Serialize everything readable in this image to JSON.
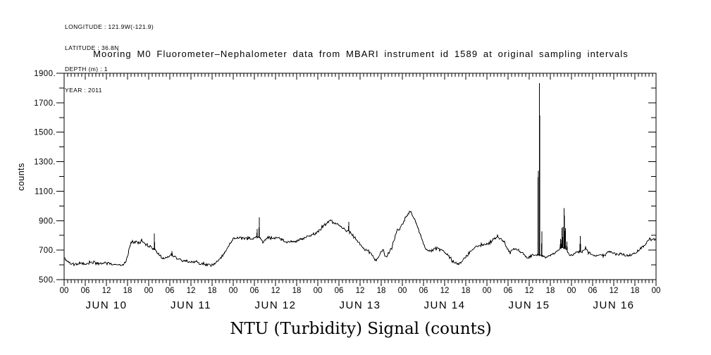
{
  "header": {
    "line1": "LONGITUDE : 121.9W(-121.9)",
    "line2": "LATITUDE : 36.8N",
    "line3": "DEPTH (m) : 1",
    "line4": "YEAR : 2011"
  },
  "title": "Mooring M0 Fluorometer–Nephalometer data from MBARI instrument id 1589 at original sampling intervals",
  "chart_data": {
    "type": "line",
    "title": "Mooring M0 Fluorometer–Nephalometer data from MBARI instrument id 1589 at original sampling intervals",
    "xlabel": "NTU (Turbidity) Signal (counts)",
    "ylabel": "counts",
    "ylim": [
      500,
      1900
    ],
    "y_major_ticks": [
      500,
      700,
      900,
      1100,
      1300,
      1500,
      1700,
      1900
    ],
    "y_tick_labels": [
      "500.",
      "700.",
      "900.",
      "1100.",
      "1300.",
      "1500.",
      "1700.",
      "1900."
    ],
    "y_minor_step": 100,
    "x_hours_total": 168,
    "x_hour_tick_step": 1,
    "x_label_step_hours": 6,
    "hour_tick_labels": [
      "00",
      "06",
      "12",
      "18"
    ],
    "day_labels": [
      "JUN 10",
      "JUN 11",
      "JUN 12",
      "JUN 13",
      "JUN 14",
      "JUN 15",
      "JUN 16"
    ],
    "grid": "off",
    "line_color": "#000000",
    "background_color": "#ffffff",
    "noise_amp": 8,
    "sample_step_hours": 0.2,
    "trend": [
      [
        0,
        648
      ],
      [
        0.5,
        630
      ],
      [
        1,
        618
      ],
      [
        2,
        610
      ],
      [
        3,
        606
      ],
      [
        4,
        604
      ],
      [
        5,
        607
      ],
      [
        6,
        609
      ],
      [
        7,
        612
      ],
      [
        8,
        616
      ],
      [
        9,
        610
      ],
      [
        10,
        608
      ],
      [
        11,
        612
      ],
      [
        12,
        614
      ],
      [
        13,
        608
      ],
      [
        14,
        604
      ],
      [
        15,
        603
      ],
      [
        16,
        602
      ],
      [
        17,
        606
      ],
      [
        17.5,
        620
      ],
      [
        18,
        662
      ],
      [
        18.5,
        712
      ],
      [
        19,
        748
      ],
      [
        19.5,
        756
      ],
      [
        20,
        752
      ],
      [
        20.5,
        758
      ],
      [
        21,
        748
      ],
      [
        21.5,
        753
      ],
      [
        22,
        760
      ],
      [
        22.5,
        752
      ],
      [
        23,
        744
      ],
      [
        23.5,
        740
      ],
      [
        24,
        732
      ],
      [
        24.5,
        722
      ],
      [
        25,
        714
      ],
      [
        25.5,
        708
      ],
      [
        26,
        694
      ],
      [
        26.5,
        680
      ],
      [
        27,
        668
      ],
      [
        27.5,
        656
      ],
      [
        28,
        646
      ],
      [
        28.5,
        642
      ],
      [
        29,
        650
      ],
      [
        29.5,
        656
      ],
      [
        30,
        662
      ],
      [
        30.5,
        668
      ],
      [
        31,
        660
      ],
      [
        31.5,
        652
      ],
      [
        32,
        644
      ],
      [
        33,
        634
      ],
      [
        34,
        628
      ],
      [
        35,
        626
      ],
      [
        36,
        622
      ],
      [
        37,
        618
      ],
      [
        38,
        612
      ],
      [
        39,
        606
      ],
      [
        40,
        602
      ],
      [
        41,
        600
      ],
      [
        41.5,
        597
      ],
      [
        42,
        600
      ],
      [
        42.5,
        606
      ],
      [
        43,
        614
      ],
      [
        43.5,
        622
      ],
      [
        44,
        634
      ],
      [
        44.5,
        648
      ],
      [
        45,
        664
      ],
      [
        45.5,
        682
      ],
      [
        46,
        702
      ],
      [
        46.5,
        722
      ],
      [
        47,
        742
      ],
      [
        47.5,
        762
      ],
      [
        48,
        776
      ],
      [
        48.5,
        782
      ],
      [
        49,
        788
      ],
      [
        49.5,
        784
      ],
      [
        50,
        782
      ],
      [
        50.5,
        786
      ],
      [
        51,
        780
      ],
      [
        51.5,
        776
      ],
      [
        52,
        782
      ],
      [
        52.5,
        786
      ],
      [
        53,
        778
      ],
      [
        53.5,
        772
      ],
      [
        54,
        780
      ],
      [
        54.5,
        786
      ],
      [
        55,
        788
      ],
      [
        55.5,
        782
      ],
      [
        56,
        764
      ],
      [
        56.5,
        758
      ],
      [
        57,
        770
      ],
      [
        57.5,
        780
      ],
      [
        58,
        786
      ],
      [
        58.5,
        790
      ],
      [
        59,
        782
      ],
      [
        59.5,
        778
      ],
      [
        60,
        784
      ],
      [
        60.5,
        788
      ],
      [
        61,
        780
      ],
      [
        61.5,
        774
      ],
      [
        62,
        768
      ],
      [
        62.5,
        760
      ],
      [
        63,
        756
      ],
      [
        63.5,
        752
      ],
      [
        64,
        758
      ],
      [
        64.5,
        764
      ],
      [
        65,
        758
      ],
      [
        65.5,
        754
      ],
      [
        66,
        762
      ],
      [
        66.5,
        768
      ],
      [
        67,
        772
      ],
      [
        67.5,
        776
      ],
      [
        68,
        780
      ],
      [
        68.5,
        786
      ],
      [
        69,
        792
      ],
      [
        69.5,
        788
      ],
      [
        70,
        794
      ],
      [
        70.5,
        800
      ],
      [
        71,
        808
      ],
      [
        71.5,
        816
      ],
      [
        72,
        824
      ],
      [
        72.5,
        836
      ],
      [
        73,
        848
      ],
      [
        73.5,
        862
      ],
      [
        74,
        876
      ],
      [
        74.5,
        888
      ],
      [
        75,
        898
      ],
      [
        75.5,
        906
      ],
      [
        76,
        898
      ],
      [
        76.5,
        890
      ],
      [
        77,
        882
      ],
      [
        77.5,
        874
      ],
      [
        78,
        868
      ],
      [
        78.5,
        860
      ],
      [
        79,
        852
      ],
      [
        79.5,
        846
      ],
      [
        80,
        838
      ],
      [
        80.5,
        834
      ],
      [
        81,
        830
      ],
      [
        81.5,
        818
      ],
      [
        82,
        804
      ],
      [
        82.5,
        788
      ],
      [
        83,
        772
      ],
      [
        83.5,
        756
      ],
      [
        84,
        740
      ],
      [
        84.5,
        724
      ],
      [
        85,
        710
      ],
      [
        85.5,
        702
      ],
      [
        86,
        696
      ],
      [
        86.5,
        688
      ],
      [
        87,
        678
      ],
      [
        87.5,
        660
      ],
      [
        88,
        642
      ],
      [
        88.5,
        630
      ],
      [
        89,
        648
      ],
      [
        89.5,
        672
      ],
      [
        90,
        694
      ],
      [
        90.5,
        700
      ],
      [
        91,
        668
      ],
      [
        91.5,
        656
      ],
      [
        92,
        678
      ],
      [
        92.5,
        696
      ],
      [
        93,
        718
      ],
      [
        93.5,
        750
      ],
      [
        94,
        788
      ],
      [
        94.5,
        842
      ],
      [
        95,
        836
      ],
      [
        95.5,
        854
      ],
      [
        96,
        878
      ],
      [
        96.5,
        898
      ],
      [
        97,
        918
      ],
      [
        97.5,
        940
      ],
      [
        98,
        958
      ],
      [
        98.3,
        966
      ],
      [
        98.7,
        948
      ],
      [
        99,
        932
      ],
      [
        99.5,
        904
      ],
      [
        100,
        876
      ],
      [
        100.5,
        844
      ],
      [
        101,
        812
      ],
      [
        101.5,
        778
      ],
      [
        102,
        748
      ],
      [
        102.5,
        720
      ],
      [
        103,
        702
      ],
      [
        103.5,
        696
      ],
      [
        104,
        694
      ],
      [
        104.5,
        700
      ],
      [
        105,
        706
      ],
      [
        105.5,
        712
      ],
      [
        106,
        720
      ],
      [
        106.5,
        710
      ],
      [
        107,
        700
      ],
      [
        107.5,
        696
      ],
      [
        108,
        690
      ],
      [
        108.5,
        676
      ],
      [
        109,
        662
      ],
      [
        109.5,
        648
      ],
      [
        110,
        636
      ],
      [
        110.5,
        624
      ],
      [
        111,
        616
      ],
      [
        111.5,
        610
      ],
      [
        112,
        606
      ],
      [
        112.5,
        612
      ],
      [
        113,
        624
      ],
      [
        113.5,
        638
      ],
      [
        114,
        654
      ],
      [
        114.5,
        670
      ],
      [
        115,
        684
      ],
      [
        115.5,
        696
      ],
      [
        116,
        706
      ],
      [
        116.5,
        714
      ],
      [
        117,
        724
      ],
      [
        117.5,
        730
      ],
      [
        118,
        734
      ],
      [
        118.5,
        732
      ],
      [
        119,
        736
      ],
      [
        119.5,
        738
      ],
      [
        120,
        740
      ],
      [
        120.5,
        746
      ],
      [
        121,
        754
      ],
      [
        121.5,
        764
      ],
      [
        122,
        774
      ],
      [
        122.5,
        782
      ],
      [
        123,
        788
      ],
      [
        123.5,
        780
      ],
      [
        124,
        772
      ],
      [
        124.5,
        764
      ],
      [
        125,
        754
      ],
      [
        125.5,
        728
      ],
      [
        126,
        702
      ],
      [
        126.5,
        690
      ],
      [
        127,
        696
      ],
      [
        127.5,
        706
      ],
      [
        128,
        714
      ],
      [
        128.5,
        704
      ],
      [
        129,
        692
      ],
      [
        129.5,
        688
      ],
      [
        130,
        684
      ],
      [
        130.5,
        670
      ],
      [
        131,
        656
      ],
      [
        131.5,
        646
      ],
      [
        132,
        652
      ],
      [
        132.5,
        660
      ],
      [
        133,
        666
      ],
      [
        133.5,
        670
      ],
      [
        134,
        668
      ],
      [
        134.5,
        666
      ],
      [
        135,
        664
      ],
      [
        135.5,
        662
      ],
      [
        136,
        660
      ],
      [
        136.5,
        657
      ],
      [
        137,
        654
      ],
      [
        137.5,
        657
      ],
      [
        138,
        661
      ],
      [
        138.5,
        668
      ],
      [
        139,
        678
      ],
      [
        139.5,
        688
      ],
      [
        140,
        698
      ],
      [
        140.5,
        708
      ],
      [
        141,
        714
      ],
      [
        141.5,
        716
      ],
      [
        142,
        714
      ],
      [
        142.5,
        708
      ],
      [
        143,
        692
      ],
      [
        143.5,
        668
      ],
      [
        144,
        666
      ],
      [
        144.5,
        672
      ],
      [
        145,
        678
      ],
      [
        145.5,
        684
      ],
      [
        146,
        688
      ],
      [
        146.5,
        690
      ],
      [
        147,
        686
      ],
      [
        147.5,
        702
      ],
      [
        148,
        714
      ],
      [
        148.5,
        700
      ],
      [
        149,
        682
      ],
      [
        149.5,
        674
      ],
      [
        150,
        670
      ],
      [
        150.5,
        666
      ],
      [
        151,
        664
      ],
      [
        151.5,
        668
      ],
      [
        152,
        672
      ],
      [
        152.5,
        670
      ],
      [
        153,
        667
      ],
      [
        153.5,
        672
      ],
      [
        154,
        680
      ],
      [
        154.5,
        688
      ],
      [
        155,
        692
      ],
      [
        155.5,
        682
      ],
      [
        156,
        676
      ],
      [
        156.5,
        672
      ],
      [
        157,
        669
      ],
      [
        157.5,
        672
      ],
      [
        158,
        673
      ],
      [
        158.5,
        670
      ],
      [
        159,
        667
      ],
      [
        159.5,
        665
      ],
      [
        160,
        664
      ],
      [
        160.5,
        667
      ],
      [
        161,
        670
      ],
      [
        161.5,
        672
      ],
      [
        162,
        676
      ],
      [
        162.5,
        686
      ],
      [
        163,
        698
      ],
      [
        163.5,
        708
      ],
      [
        164,
        718
      ],
      [
        164.5,
        730
      ],
      [
        165,
        744
      ],
      [
        165.5,
        758
      ],
      [
        166,
        772
      ],
      [
        166.3,
        780
      ],
      [
        166.7,
        762
      ],
      [
        167,
        768
      ],
      [
        167.5,
        774
      ],
      [
        168,
        766
      ]
    ],
    "spikes": [
      [
        25.6,
        812
      ],
      [
        30.6,
        694
      ],
      [
        54.8,
        845
      ],
      [
        55.4,
        922
      ],
      [
        80.8,
        892
      ],
      [
        134.55,
        1238
      ],
      [
        134.95,
        1832
      ],
      [
        135.6,
        828
      ],
      [
        140.9,
        778
      ],
      [
        141.3,
        852
      ],
      [
        141.6,
        858
      ],
      [
        141.95,
        986
      ],
      [
        142.25,
        848
      ],
      [
        142.7,
        758
      ],
      [
        146.5,
        796
      ]
    ]
  }
}
